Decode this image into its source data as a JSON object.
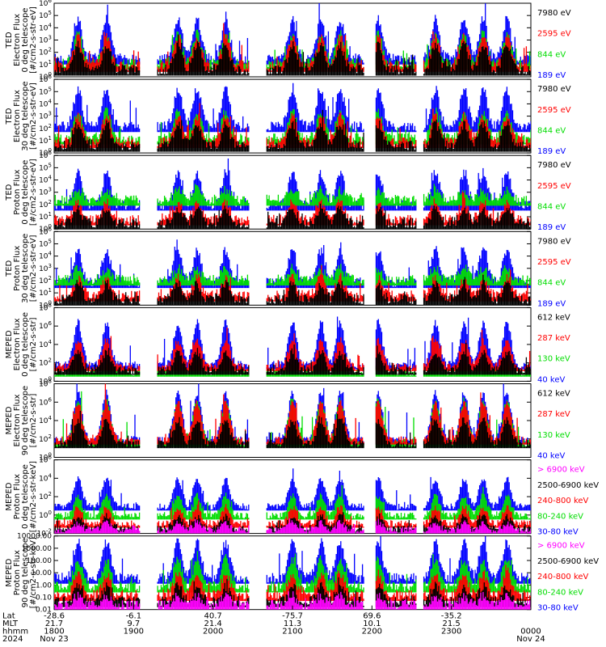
{
  "chart_data": {
    "type": "line",
    "x_axis": {
      "tick_times": [
        "1800",
        "1900",
        "2000",
        "2100",
        "2200",
        "2300",
        "0000"
      ],
      "rows": [
        {
          "name": "Lat",
          "values": [
            "-28.6",
            "-6.1",
            "40.7",
            "-75.7",
            "69.6",
            "-35.2",
            ""
          ]
        },
        {
          "name": "MLT",
          "values": [
            "21.7",
            "9.7",
            "21.4",
            "11.3",
            "10.1",
            "21.5",
            ""
          ]
        },
        {
          "name": "hhmm",
          "values": [
            "1800",
            "1900",
            "2000",
            "2100",
            "2200",
            "2300",
            "0000"
          ]
        },
        {
          "name": "2024",
          "values": [
            "Nov 23",
            "",
            "",
            "",
            "",
            "",
            "Nov 24"
          ]
        }
      ]
    },
    "panels": [
      {
        "ylabel": [
          "TED",
          "Electron Flux",
          "0 deg telescope",
          "[#/cm2-s-str-eV]"
        ],
        "yticks": [
          "10^0",
          "10^1",
          "10^2",
          "10^3",
          "10^4",
          "10^5",
          "10^6"
        ],
        "log": true,
        "ylim": [
          0,
          6
        ],
        "channels": [
          {
            "label": "7980 eV",
            "color": "#000000",
            "base": 0.6,
            "amp": 2.0
          },
          {
            "label": "2595 eV",
            "color": "#ff0000",
            "base": 0.9,
            "amp": 2.3
          },
          {
            "label": "844 eV",
            "color": "#00dd00",
            "base": 1.1,
            "amp": 2.4
          },
          {
            "label": "189 eV",
            "color": "#0000ff",
            "base": 1.5,
            "amp": 3.2
          }
        ]
      },
      {
        "ylabel": [
          "TED",
          "Electron Flux",
          "30 deg telescope",
          "[#/cm2-s-str-eV]"
        ],
        "yticks": [
          "10^0",
          "10^1",
          "10^2",
          "10^3",
          "10^4",
          "10^5",
          "10^6"
        ],
        "log": true,
        "ylim": [
          0,
          6
        ],
        "channels": [
          {
            "label": "7980 eV",
            "color": "#000000",
            "base": 0.6,
            "amp": 1.8
          },
          {
            "label": "2595 eV",
            "color": "#ff0000",
            "base": 0.9,
            "amp": 2.1
          },
          {
            "label": "844 eV",
            "color": "#00dd00",
            "base": 1.2,
            "amp": 2.2
          },
          {
            "label": "189 eV",
            "color": "#0000ff",
            "base": 2.2,
            "amp": 3.0
          }
        ]
      },
      {
        "ylabel": [
          "TED",
          "Proton Flux",
          "0 deg telescope",
          "[#/cm2-s-str-eV]"
        ],
        "yticks": [
          "10^0",
          "10^1",
          "10^2",
          "10^3",
          "10^4",
          "10^5",
          "10^6"
        ],
        "log": true,
        "ylim": [
          0,
          6
        ],
        "channels": [
          {
            "label": "7980 eV",
            "color": "#000000",
            "base": 0.5,
            "amp": 1.2
          },
          {
            "label": "2595 eV",
            "color": "#ff0000",
            "base": 0.8,
            "amp": 1.4
          },
          {
            "label": "844 eV",
            "color": "#00dd00",
            "base": 2.4,
            "amp": 0.8
          },
          {
            "label": "189 eV",
            "color": "#0000ff",
            "base": 2.0,
            "amp": 2.6
          }
        ]
      },
      {
        "ylabel": [
          "TED",
          "Proton Flux",
          "30 deg telescope",
          "[#/cm2-s-str-eV]"
        ],
        "yticks": [
          "10^0",
          "10^1",
          "10^2",
          "10^3",
          "10^4",
          "10^5",
          "10^6"
        ],
        "log": true,
        "ylim": [
          0,
          6
        ],
        "channels": [
          {
            "label": "7980 eV",
            "color": "#000000",
            "base": 0.5,
            "amp": 1.2
          },
          {
            "label": "2595 eV",
            "color": "#ff0000",
            "base": 0.8,
            "amp": 1.4
          },
          {
            "label": "844 eV",
            "color": "#00dd00",
            "base": 2.1,
            "amp": 0.9
          },
          {
            "label": "189 eV",
            "color": "#0000ff",
            "base": 1.9,
            "amp": 2.6
          }
        ]
      },
      {
        "ylabel": [
          "MEPED",
          "Electron Flux",
          "0 deg telescope",
          "[#/cm2-s-str]"
        ],
        "yticks": [
          "10^0",
          "10^2",
          "10^4",
          "10^6",
          "10^8"
        ],
        "log": true,
        "ylim": [
          0,
          8
        ],
        "channels": [
          {
            "label": "612 keV",
            "color": "#000000",
            "base": 1.2,
            "amp": 2.0
          },
          {
            "label": "287 keV",
            "color": "#ff0000",
            "base": 1.6,
            "amp": 2.8
          },
          {
            "label": "130 keV",
            "color": "#00dd00",
            "base": 1.0,
            "amp": 0.8
          },
          {
            "label": "40 keV",
            "color": "#0000ff",
            "base": 1.8,
            "amp": 4.6
          }
        ]
      },
      {
        "ylabel": [
          "MEPED",
          "Electron Flux",
          "90 deg telescope",
          "[#/cm2-s-str]"
        ],
        "yticks": [
          "10^0",
          "10^2",
          "10^4",
          "10^6",
          "10^8"
        ],
        "log": true,
        "ylim": [
          0,
          8
        ],
        "channels": [
          {
            "label": "612 keV",
            "color": "#000000",
            "base": 1.5,
            "amp": 2.6
          },
          {
            "label": "287 keV",
            "color": "#ff0000",
            "base": 1.9,
            "amp": 4.0
          },
          {
            "label": "130 keV",
            "color": "#00dd00",
            "base": 1.6,
            "amp": 4.6
          },
          {
            "label": "40 keV",
            "color": "#0000ff",
            "base": 1.9,
            "amp": 5.2
          }
        ]
      },
      {
        "ylabel": [
          "MEPED",
          "Proton Flux",
          "0 deg telescope",
          "[#/cm2-s-str-keV]"
        ],
        "yticks": [
          "10^-2",
          "10^0",
          "10^2",
          "10^4",
          "10^6"
        ],
        "log": true,
        "ylim": [
          -3,
          6
        ],
        "channels": [
          {
            "label": "> 6900 keV",
            "color": "#ff00ff",
            "base": -2.6,
            "amp": 0.9
          },
          {
            "label": "2500-6900 keV",
            "color": "#000000",
            "base": -2.4,
            "amp": 1.5
          },
          {
            "label": "240-800 keV",
            "color": "#ff0000",
            "base": -1.8,
            "amp": 2.0
          },
          {
            "label": "80-240 keV",
            "color": "#00dd00",
            "base": -0.8,
            "amp": 2.4
          },
          {
            "label": "30-80 keV",
            "color": "#0000ff",
            "base": 0.3,
            "amp": 3.4
          }
        ]
      },
      {
        "ylabel": [
          "MEPED",
          "Proton Flux",
          "90 deg telescope",
          "[#/cm2-s-str-keV]"
        ],
        "yticks": [
          "0.01",
          "0.10",
          "1.00",
          "10.00",
          "100.00",
          "1000.00",
          "10000.00"
        ],
        "log": true,
        "ylim": [
          -2,
          4
        ],
        "channels": [
          {
            "label": "> 6900 keV",
            "color": "#ff00ff",
            "base": -1.6,
            "amp": 0.7
          },
          {
            "label": "2500-6900 keV",
            "color": "#000000",
            "base": -1.3,
            "amp": 1.2
          },
          {
            "label": "240-800 keV",
            "color": "#ff0000",
            "base": -0.8,
            "amp": 1.7
          },
          {
            "label": "80-240 keV",
            "color": "#00dd00",
            "base": -0.1,
            "amp": 2.2
          },
          {
            "label": "30-80 keV",
            "color": "#0000ff",
            "base": 0.6,
            "amp": 2.9
          }
        ]
      }
    ],
    "data_gaps": [
      [
        0.18,
        0.215
      ],
      [
        0.41,
        0.445
      ],
      [
        0.65,
        0.675
      ],
      [
        0.76,
        0.775
      ]
    ],
    "peaks": [
      0.05,
      0.11,
      0.26,
      0.3,
      0.36,
      0.5,
      0.56,
      0.6,
      0.68,
      0.8,
      0.86,
      0.9,
      0.95
    ]
  }
}
